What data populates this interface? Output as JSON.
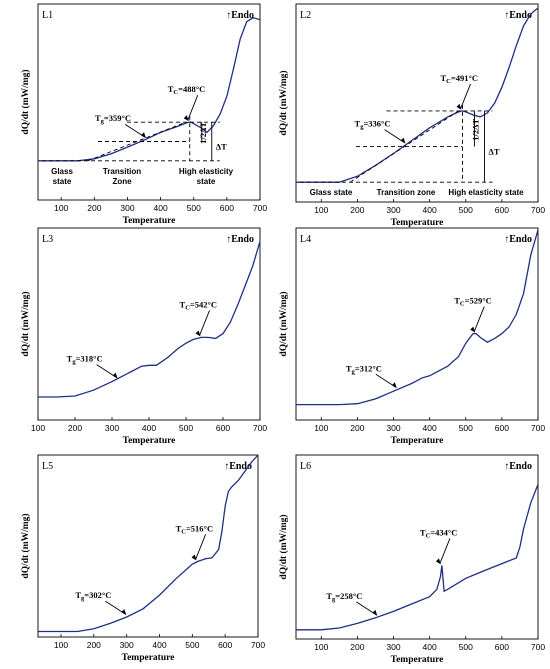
{
  "chart_data": [
    {
      "type": "line",
      "panel": "L1",
      "endo_label": "↑Endo",
      "xlabel": "Temperature",
      "ylabel": "dQ/dt (mW/mg)",
      "xlim": [
        30,
        700
      ],
      "ylim": [
        0,
        10
      ],
      "xticks": [
        100,
        200,
        300,
        400,
        500,
        600,
        700
      ],
      "x": [
        30,
        100,
        150,
        200,
        250,
        300,
        350,
        400,
        450,
        480,
        490,
        500,
        520,
        540,
        560,
        580,
        600,
        620,
        640,
        660,
        680,
        700
      ],
      "y": [
        2.0,
        2.0,
        2.0,
        2.1,
        2.35,
        2.7,
        3.05,
        3.45,
        3.75,
        3.95,
        3.98,
        3.9,
        3.7,
        3.45,
        3.8,
        4.4,
        5.3,
        6.7,
        8.2,
        9.1,
        9.3,
        9.2
      ],
      "annotations": [
        {
          "text": "Tg=359°C",
          "x": 359,
          "y": 3.1
        },
        {
          "text": "TC=488°C",
          "x": 488,
          "y": 3.97
        }
      ],
      "interval_labels": [
        "1/2ΔT",
        "ΔT"
      ],
      "zones": [
        "Glass state",
        "Transition Zone",
        "High elasticity state"
      ]
    },
    {
      "type": "line",
      "panel": "L2",
      "endo_label": "↑Endo",
      "xlabel": "Temperature",
      "ylabel": "dQ/dt (mW/mg)",
      "xlim": [
        30,
        700
      ],
      "ylim": [
        0,
        10
      ],
      "xticks": [
        100,
        200,
        300,
        400,
        500,
        600,
        700
      ],
      "x": [
        30,
        100,
        150,
        200,
        250,
        300,
        350,
        400,
        450,
        480,
        491,
        500,
        520,
        540,
        560,
        580,
        600,
        620,
        640,
        660,
        680,
        700
      ],
      "y": [
        1.0,
        1.0,
        1.0,
        1.3,
        1.85,
        2.45,
        3.1,
        3.75,
        4.3,
        4.55,
        4.6,
        4.55,
        4.4,
        4.3,
        4.5,
        5.0,
        5.8,
        6.8,
        7.9,
        8.9,
        9.5,
        9.8
      ],
      "annotations": [
        {
          "text": "Tg=336°C",
          "x": 336,
          "y": 2.9
        },
        {
          "text": "TC=491°C",
          "x": 491,
          "y": 4.6
        }
      ],
      "interval_labels": [
        "1/2ΔT",
        "ΔT"
      ],
      "zones": [
        "Glass state",
        "Transition zone",
        "High elasticity state"
      ]
    },
    {
      "type": "line",
      "panel": "L3",
      "endo_label": "↑Endo",
      "xlabel": "Temperature",
      "ylabel": "dQ/dt (mW/mg)",
      "xlim": [
        100,
        700
      ],
      "ylim": [
        0,
        10
      ],
      "xticks": [
        100,
        200,
        300,
        400,
        500,
        600,
        700
      ],
      "x": [
        100,
        150,
        200,
        250,
        300,
        350,
        380,
        400,
        420,
        450,
        480,
        500,
        520,
        542,
        560,
        580,
        600,
        620,
        640,
        660,
        680,
        700
      ],
      "y": [
        1.2,
        1.2,
        1.25,
        1.55,
        2.0,
        2.5,
        2.8,
        2.85,
        2.85,
        3.25,
        3.75,
        4.0,
        4.2,
        4.3,
        4.3,
        4.25,
        4.5,
        5.1,
        6.0,
        7.0,
        8.0,
        9.3
      ],
      "annotations": [
        {
          "text": "Tg=318°C",
          "x": 318,
          "y": 2.1
        },
        {
          "text": "TC=542°C",
          "x": 542,
          "y": 4.3
        }
      ]
    },
    {
      "type": "line",
      "panel": "L4",
      "endo_label": "↑Endo",
      "xlabel": "Temperature",
      "ylabel": "dQ/dt (mW/mg)",
      "xlim": [
        30,
        700
      ],
      "ylim": [
        0,
        10
      ],
      "xticks": [
        100,
        200,
        300,
        400,
        500,
        600,
        700
      ],
      "x": [
        30,
        100,
        150,
        200,
        250,
        300,
        350,
        380,
        400,
        450,
        480,
        500,
        520,
        529,
        540,
        560,
        580,
        600,
        620,
        640,
        660,
        680,
        700
      ],
      "y": [
        0.8,
        0.8,
        0.8,
        0.85,
        1.1,
        1.5,
        1.9,
        2.2,
        2.3,
        2.8,
        3.3,
        4.0,
        4.5,
        4.5,
        4.3,
        4.05,
        4.25,
        4.5,
        4.85,
        5.5,
        6.6,
        8.6,
        9.9
      ],
      "annotations": [
        {
          "text": "Tg=312°C",
          "x": 312,
          "y": 1.6
        },
        {
          "text": "TC=529°C",
          "x": 529,
          "y": 4.5
        }
      ]
    },
    {
      "type": "line",
      "panel": "L5",
      "endo_label": "↑Endo",
      "xlabel": "Temperature",
      "ylabel": "dQ/dt (mW/mg)",
      "xlim": [
        30,
        700
      ],
      "ylim": [
        0,
        10
      ],
      "xticks": [
        100,
        200,
        300,
        400,
        500,
        600,
        700
      ],
      "x": [
        30,
        100,
        150,
        200,
        250,
        300,
        350,
        400,
        450,
        500,
        516,
        540,
        560,
        580,
        590,
        600,
        610,
        620,
        640,
        660,
        680,
        700
      ],
      "y": [
        0.3,
        0.3,
        0.3,
        0.45,
        0.75,
        1.1,
        1.55,
        2.3,
        3.2,
        4.0,
        4.15,
        4.3,
        4.35,
        4.8,
        5.8,
        7.2,
        8.0,
        8.25,
        8.6,
        9.1,
        9.6,
        10.0
      ],
      "annotations": [
        {
          "text": "Tg=302°C",
          "x": 302,
          "y": 1.15
        },
        {
          "text": "TC=516°C",
          "x": 516,
          "y": 4.15
        }
      ]
    },
    {
      "type": "line",
      "panel": "L6",
      "endo_label": "↑Endo",
      "xlabel": "Temperature",
      "ylabel": "dQ/dt (mW/mg)",
      "xlim": [
        30,
        700
      ],
      "ylim": [
        0,
        10
      ],
      "xticks": [
        100,
        200,
        300,
        400,
        500,
        600,
        700
      ],
      "x": [
        30,
        100,
        150,
        200,
        250,
        300,
        350,
        400,
        420,
        430,
        434,
        440,
        450,
        500,
        550,
        600,
        640,
        650,
        660,
        680,
        700
      ],
      "y": [
        0.5,
        0.5,
        0.6,
        0.85,
        1.15,
        1.5,
        1.9,
        2.3,
        2.7,
        3.4,
        4.0,
        2.6,
        2.7,
        3.3,
        3.7,
        4.1,
        4.4,
        5.0,
        6.0,
        7.4,
        8.4
      ],
      "annotations": [
        {
          "text": "Tg=258°C",
          "x": 258,
          "y": 1.2
        },
        {
          "text": "TC=434°C",
          "x": 434,
          "y": 4.0
        }
      ]
    }
  ]
}
